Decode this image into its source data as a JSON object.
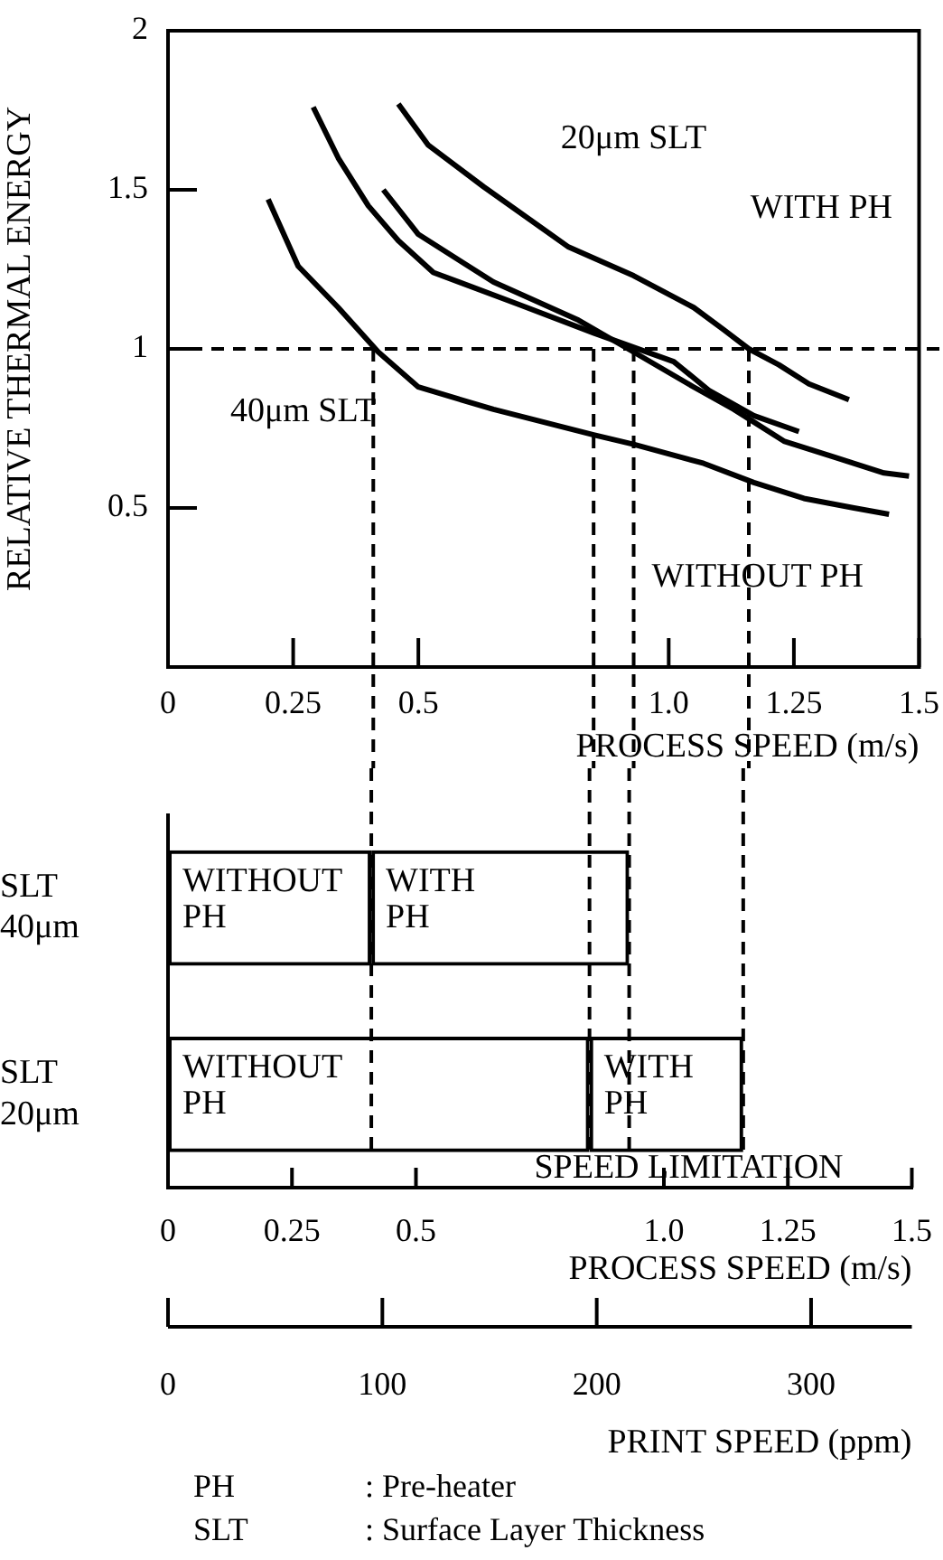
{
  "chart_data": [
    {
      "type": "line",
      "ylabel": "RELATIVE THERMAL ENERGY",
      "xlabel": "PROCESS SPEED (m/s)",
      "marker": "none",
      "xlim": [
        0,
        1.5
      ],
      "xticks": [
        0,
        0.25,
        0.5,
        {
          "value": 1,
          "label": "1.0"
        },
        1.25,
        1.5
      ],
      "ylim": [
        0,
        2
      ],
      "yticks": [
        0.5,
        1,
        1.5,
        2
      ],
      "series": [
        {
          "color": "#000000",
          "x": [
            0.2,
            0.26,
            0.34,
            0.42,
            0.5,
            0.65,
            0.85,
            0.93,
            1.07,
            1.17,
            1.27,
            1.37,
            1.44
          ],
          "values": [
            1.47,
            1.26,
            1.13,
            0.99,
            0.88,
            0.81,
            0.73,
            0.7,
            0.64,
            0.58,
            0.53,
            0.5,
            0.48
          ]
        },
        {
          "color": "#000000",
          "x": [
            0.29,
            0.34,
            0.4,
            0.46,
            0.53,
            0.7,
            0.85,
            1.01,
            1.08,
            1.17,
            1.26
          ],
          "values": [
            1.76,
            1.6,
            1.45,
            1.34,
            1.24,
            1.14,
            1.05,
            0.96,
            0.87,
            0.79,
            0.74
          ]
        },
        {
          "color": "#000000",
          "x": [
            0.43,
            0.5,
            0.65,
            0.82,
            0.93,
            1.05,
            1.13,
            1.23,
            1.33,
            1.43,
            1.48
          ],
          "values": [
            1.5,
            1.36,
            1.21,
            1.09,
            0.99,
            0.88,
            0.81,
            0.71,
            0.66,
            0.61,
            0.6
          ]
        },
        {
          "color": "#000000",
          "x": [
            0.46,
            0.52,
            0.63,
            0.8,
            0.93,
            1.05,
            1.11,
            1.16,
            1.22,
            1.28,
            1.36
          ],
          "values": [
            1.77,
            1.64,
            1.51,
            1.32,
            1.23,
            1.13,
            1.06,
            1.0,
            0.95,
            0.89,
            0.84
          ]
        }
      ],
      "ref_lines": [
        {
          "axis": "y",
          "value": 1,
          "line_style": "dashed"
        },
        {
          "axis": "x",
          "value": 0.41,
          "line_style": "dashed"
        },
        {
          "axis": "x",
          "value": 0.85,
          "line_style": "dashed"
        },
        {
          "axis": "x",
          "value": 0.93,
          "line_style": "dashed"
        },
        {
          "axis": "x",
          "value": 1.16,
          "line_style": "dashed"
        }
      ],
      "annotations": [
        "20μm SLT",
        "WITH PH",
        "40μm SLT",
        "WITHOUT PH"
      ]
    },
    {
      "type": "bar",
      "orientation": "horizontal",
      "stacked": true,
      "categories": [
        "SLT 40μm",
        "SLT 20μm"
      ],
      "xlabel": "PROCESS SPEED (m/s)",
      "xlim": [
        0,
        1.5
      ],
      "xticks": [
        0,
        0.25,
        0.5,
        {
          "value": 1,
          "label": "1.0"
        },
        1.25,
        1.5
      ],
      "x2label": "PRINT SPEED (ppm)",
      "x2lim": [
        0,
        347
      ],
      "x2ticks": [
        0,
        100,
        200,
        300
      ],
      "series": [
        {
          "name": "WITHOUT PH",
          "color": "#000000",
          "values": [
            0.41,
            0.85
          ]
        },
        {
          "name": "WITH PH",
          "color": "#000000",
          "values": [
            0.52,
            0.31
          ]
        }
      ],
      "ref_lines": [
        {
          "axis": "x",
          "value": 0.41,
          "line_style": "dashed"
        },
        {
          "axis": "x",
          "value": 0.85,
          "line_style": "dashed"
        },
        {
          "axis": "x",
          "value": 0.93,
          "line_style": "dashed"
        },
        {
          "axis": "x",
          "value": 1.16,
          "line_style": "dashed"
        }
      ],
      "annotations": [
        "SPEED LIMITATION",
        "PH : Pre-heater",
        "SLT : Surface Layer Thickness"
      ]
    }
  ]
}
